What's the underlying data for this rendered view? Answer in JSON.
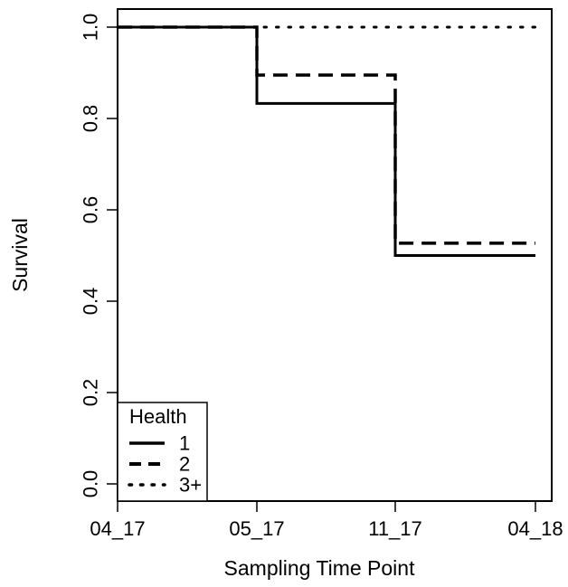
{
  "chart_data": {
    "type": "line",
    "step": true,
    "title": "",
    "xlabel": "Sampling Time Point",
    "ylabel": "Survival",
    "categories": [
      "04_17",
      "05_17",
      "11_17",
      "04_18"
    ],
    "yticks": [
      "0.0",
      "0.2",
      "0.4",
      "0.6",
      "0.8",
      "1.0"
    ],
    "ylim": [
      0,
      1
    ],
    "grid": false,
    "legend": {
      "title": "Health",
      "placement": "bottom-left"
    },
    "series": [
      {
        "name": "1",
        "linestyle": "solid",
        "values": [
          1.0,
          0.833,
          0.5,
          0.5
        ]
      },
      {
        "name": "2",
        "linestyle": "dashed",
        "values": [
          1.0,
          0.895,
          0.527,
          0.527
        ]
      },
      {
        "name": "3+",
        "linestyle": "dotted",
        "values": [
          1.0,
          1.0,
          1.0,
          1.0
        ]
      }
    ],
    "colors": {
      "line": "#000000",
      "background": "#ffffff"
    }
  }
}
